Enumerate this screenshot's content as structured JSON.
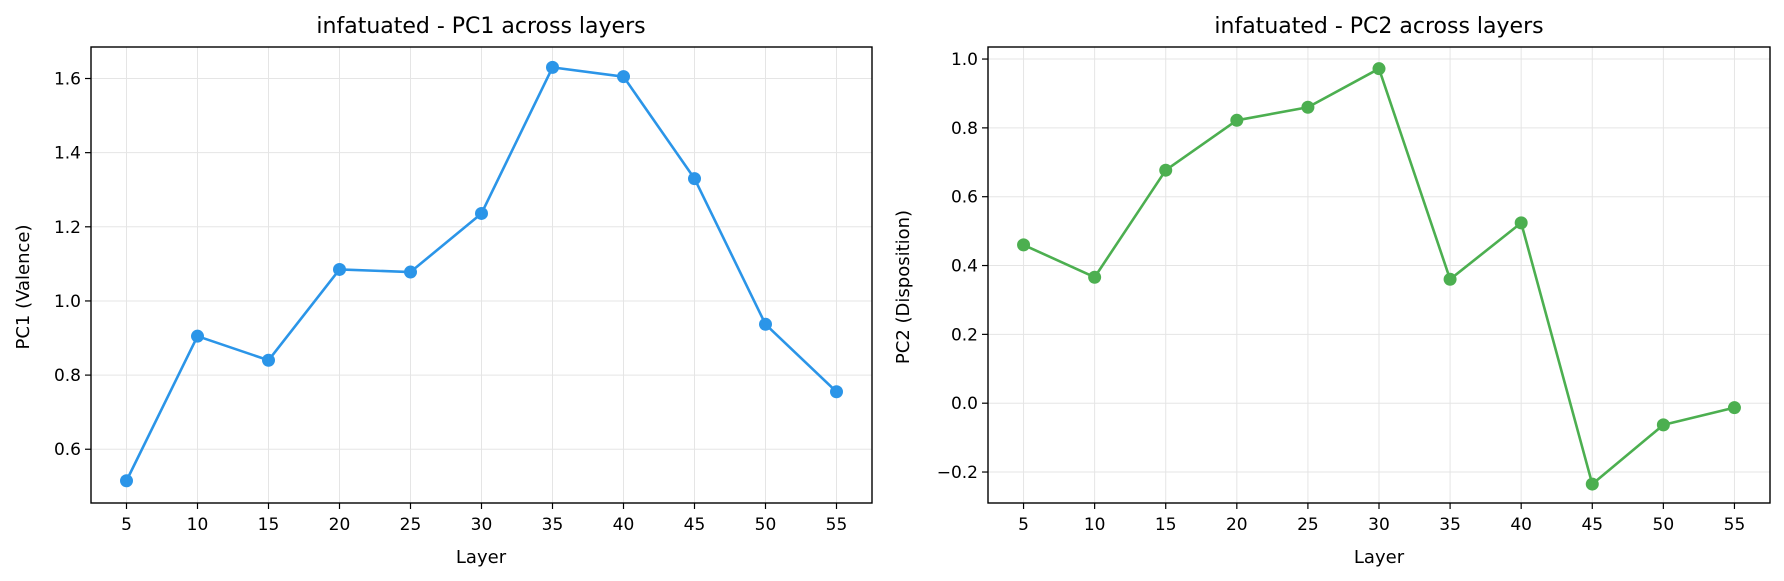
{
  "chart_data": [
    {
      "type": "line",
      "title": "infatuated - PC1 across layers",
      "xlabel": "Layer",
      "ylabel": "PC1 (Valence)",
      "color": "#2b95e8",
      "grid": true,
      "x": [
        5,
        10,
        15,
        20,
        25,
        30,
        35,
        40,
        45,
        50,
        55
      ],
      "y": [
        0.515,
        0.905,
        0.84,
        1.085,
        1.078,
        1.236,
        1.63,
        1.605,
        1.33,
        0.937,
        0.755
      ],
      "xlim": [
        2.5,
        57.5
      ],
      "ylim": [
        0.455,
        1.685
      ],
      "xticks": [
        5,
        10,
        15,
        20,
        25,
        30,
        35,
        40,
        45,
        50,
        55
      ],
      "xtick_labels": [
        "5",
        "10",
        "15",
        "20",
        "25",
        "30",
        "35",
        "40",
        "45",
        "50",
        "55"
      ],
      "yticks": [
        0.6,
        0.8,
        1.0,
        1.2,
        1.4,
        1.6
      ],
      "ytick_labels": [
        "0.6",
        "0.8",
        "1.0",
        "1.2",
        "1.4",
        "1.6"
      ]
    },
    {
      "type": "line",
      "title": "infatuated - PC2 across layers",
      "xlabel": "Layer",
      "ylabel": "PC2 (Disposition)",
      "color": "#4caf50",
      "grid": true,
      "x": [
        5,
        10,
        15,
        20,
        25,
        30,
        35,
        40,
        45,
        50,
        55
      ],
      "y": [
        0.46,
        0.366,
        0.677,
        0.822,
        0.86,
        0.972,
        0.36,
        0.524,
        -0.235,
        -0.063,
        -0.013
      ],
      "xlim": [
        2.5,
        57.5
      ],
      "ylim": [
        -0.29,
        1.035
      ],
      "xticks": [
        5,
        10,
        15,
        20,
        25,
        30,
        35,
        40,
        45,
        50,
        55
      ],
      "xtick_labels": [
        "5",
        "10",
        "15",
        "20",
        "25",
        "30",
        "35",
        "40",
        "45",
        "50",
        "55"
      ],
      "yticks": [
        -0.2,
        0.0,
        0.2,
        0.4,
        0.6,
        0.8,
        1.0
      ],
      "ytick_labels": [
        "−0.2",
        "0.0",
        "0.2",
        "0.4",
        "0.6",
        "0.8",
        "1.0"
      ]
    }
  ]
}
